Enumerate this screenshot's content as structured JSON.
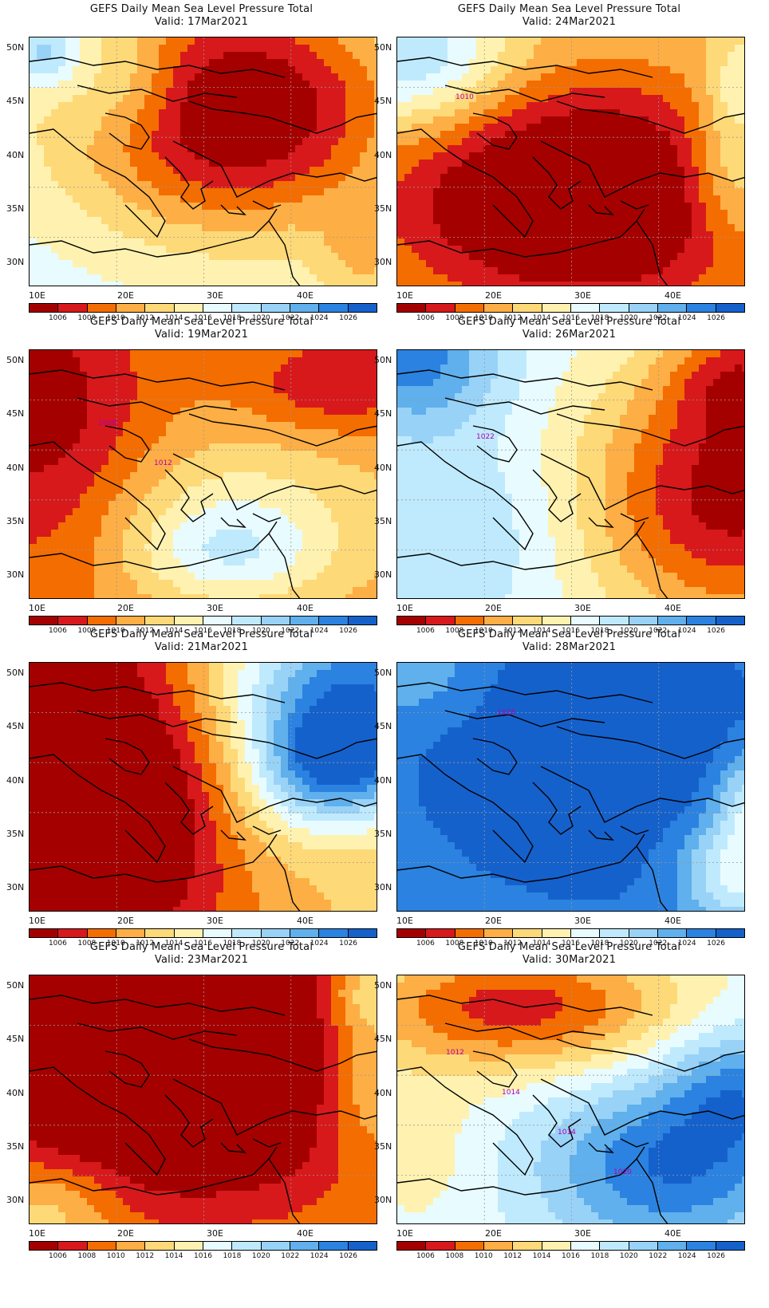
{
  "colorbar": {
    "labels": [
      "1006",
      "1008",
      "1010",
      "1012",
      "1014",
      "1016",
      "1018",
      "1020",
      "1022",
      "1024",
      "1026"
    ],
    "colors": [
      "#a50000",
      "#d7191c",
      "#f46d00",
      "#fdae44",
      "#fed978",
      "#fff2b0",
      "#e8fbff",
      "#bfeafd",
      "#99d2f7",
      "#5fb0ec",
      "#2b82e0",
      "#1561cc"
    ]
  },
  "axes": {
    "lat_labels": [
      "50N",
      "45N",
      "40N",
      "35N",
      "30N"
    ],
    "lon_labels": [
      "10E",
      "20E",
      "30E",
      "40E"
    ]
  },
  "panels": [
    {
      "title": "GEFS Daily Mean Sea Level Pressure Total",
      "valid": "Valid:  17Mar2021",
      "contour_labels": []
    },
    {
      "title": "GEFS Daily Mean Sea Level Pressure Total",
      "valid": "Valid:  24Mar2021",
      "contour_labels": [
        "1010"
      ]
    },
    {
      "title": "GEFS Daily Mean Sea Level Pressure Total",
      "valid": "Valid:  19Mar2021",
      "contour_labels": [
        "1008",
        "1012"
      ]
    },
    {
      "title": "GEFS Daily Mean Sea Level Pressure Total",
      "valid": "Valid:  26Mar2021",
      "contour_labels": [
        "1022"
      ]
    },
    {
      "title": "GEFS Daily Mean Sea Level Pressure Total",
      "valid": "Valid:  21Mar2021",
      "contour_labels": []
    },
    {
      "title": "GEFS Daily Mean Sea Level Pressure Total",
      "valid": "Valid:  28Mar2021",
      "contour_labels": [
        "1028"
      ]
    },
    {
      "title": "GEFS Daily Mean Sea Level Pressure Total",
      "valid": "Valid:  23Mar2021",
      "contour_labels": []
    },
    {
      "title": "GEFS Daily Mean Sea Level Pressure Total",
      "valid": "Valid:  30Mar2021",
      "contour_labels": [
        "1012",
        "1014",
        "1014",
        "1020"
      ]
    }
  ]
}
